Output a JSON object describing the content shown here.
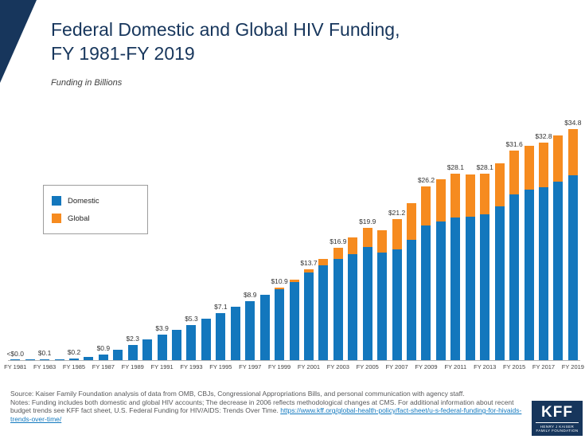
{
  "header": {
    "title_line1": "Federal Domestic and Global HIV Funding,",
    "title_line2": "FY 1981-FY 2019",
    "subtitle": "Funding in Billions"
  },
  "chart_data": {
    "type": "bar",
    "stacked": true,
    "title": "Federal Domestic and Global HIV Funding, FY 1981-FY 2019",
    "ylabel": "Funding in Billions",
    "xlabel": "",
    "grid": false,
    "legend_position": "upper-left",
    "ylim": [
      0,
      36
    ],
    "x_tick_every": 2,
    "categories": [
      "FY 1981",
      "FY 1982",
      "FY 1983",
      "FY 1984",
      "FY 1985",
      "FY 1986",
      "FY 1987",
      "FY 1988",
      "FY 1989",
      "FY 1990",
      "FY 1991",
      "FY 1992",
      "FY 1993",
      "FY 1994",
      "FY 1995",
      "FY 1996",
      "FY 1997",
      "FY 1998",
      "FY 1999",
      "FY 2000",
      "FY 2001",
      "FY 2002",
      "FY 2003",
      "FY 2004",
      "FY 2005",
      "FY 2006",
      "FY 2007",
      "FY 2008",
      "FY 2009",
      "FY 2010",
      "FY 2011",
      "FY 2012",
      "FY 2013",
      "FY 2014",
      "FY 2015",
      "FY 2016",
      "FY 2017",
      "FY 2018",
      "FY 2019"
    ],
    "series": [
      {
        "name": "Domestic",
        "color": "#1377bd",
        "values": [
          0.03,
          0.06,
          0.1,
          0.15,
          0.2,
          0.5,
          0.9,
          1.6,
          2.3,
          3.1,
          3.9,
          4.6,
          5.3,
          6.2,
          7.1,
          8.0,
          8.9,
          9.9,
          10.7,
          11.8,
          13.2,
          14.3,
          15.3,
          16.0,
          17.0,
          16.2,
          16.7,
          18.1,
          20.3,
          20.9,
          21.5,
          21.6,
          22.0,
          23.2,
          25.0,
          25.7,
          26.0,
          26.9,
          27.8
        ]
      },
      {
        "name": "Global",
        "color": "#f68b1f",
        "values": [
          0,
          0,
          0,
          0,
          0,
          0,
          0,
          0,
          0,
          0,
          0,
          0,
          0,
          0,
          0,
          0,
          0,
          0,
          0.2,
          0.3,
          0.5,
          0.9,
          1.6,
          2.5,
          2.9,
          3.4,
          4.5,
          5.5,
          5.9,
          6.3,
          6.6,
          6.4,
          6.1,
          6.5,
          6.6,
          6.6,
          6.8,
          6.9,
          7.0
        ]
      }
    ],
    "value_labels": [
      "<$0.0",
      null,
      "$0.1",
      null,
      "$0.2",
      null,
      "$0.9",
      null,
      "$2.3",
      null,
      "$3.9",
      null,
      "$5.3",
      null,
      "$7.1",
      null,
      "$8.9",
      null,
      "$10.9",
      null,
      "$13.7",
      null,
      "$16.9",
      null,
      "$19.9",
      null,
      "$21.2",
      null,
      "$26.2",
      null,
      "$28.1",
      null,
      "$28.1",
      null,
      "$31.6",
      null,
      "$32.8",
      null,
      "$34.8"
    ]
  },
  "legend": {
    "items": [
      {
        "label": "Domestic",
        "color": "#1377bd"
      },
      {
        "label": "Global",
        "color": "#f68b1f"
      }
    ]
  },
  "footer": {
    "source_line": "Source: Kaiser Family Foundation analysis of data from OMB, CBJs, Congressional Appropriations Bills, and personal communication with agency staff.",
    "notes_text": "Notes: Funding includes both domestic and global HIV accounts; The decrease in 2006 reflects methodological changes at CMS. For additional information about recent budget trends see KFF fact sheet, U.S. Federal Funding for HIV/AIDS: Trends Over Time. ",
    "link_text": "https://www.kff.org/global-health-policy/fact-sheet/u-s-federal-funding-for-hivaids-trends-over-time/",
    "logo": {
      "kff": "KFF",
      "sub1": "HENRY J KAISER",
      "sub2": "FAMILY FOUNDATION"
    }
  },
  "colors": {
    "navy": "#17365c",
    "domestic_blue": "#1377bd",
    "global_orange": "#f68b1f",
    "footer_gray": "#58595b",
    "link_blue": "#1279bf"
  }
}
